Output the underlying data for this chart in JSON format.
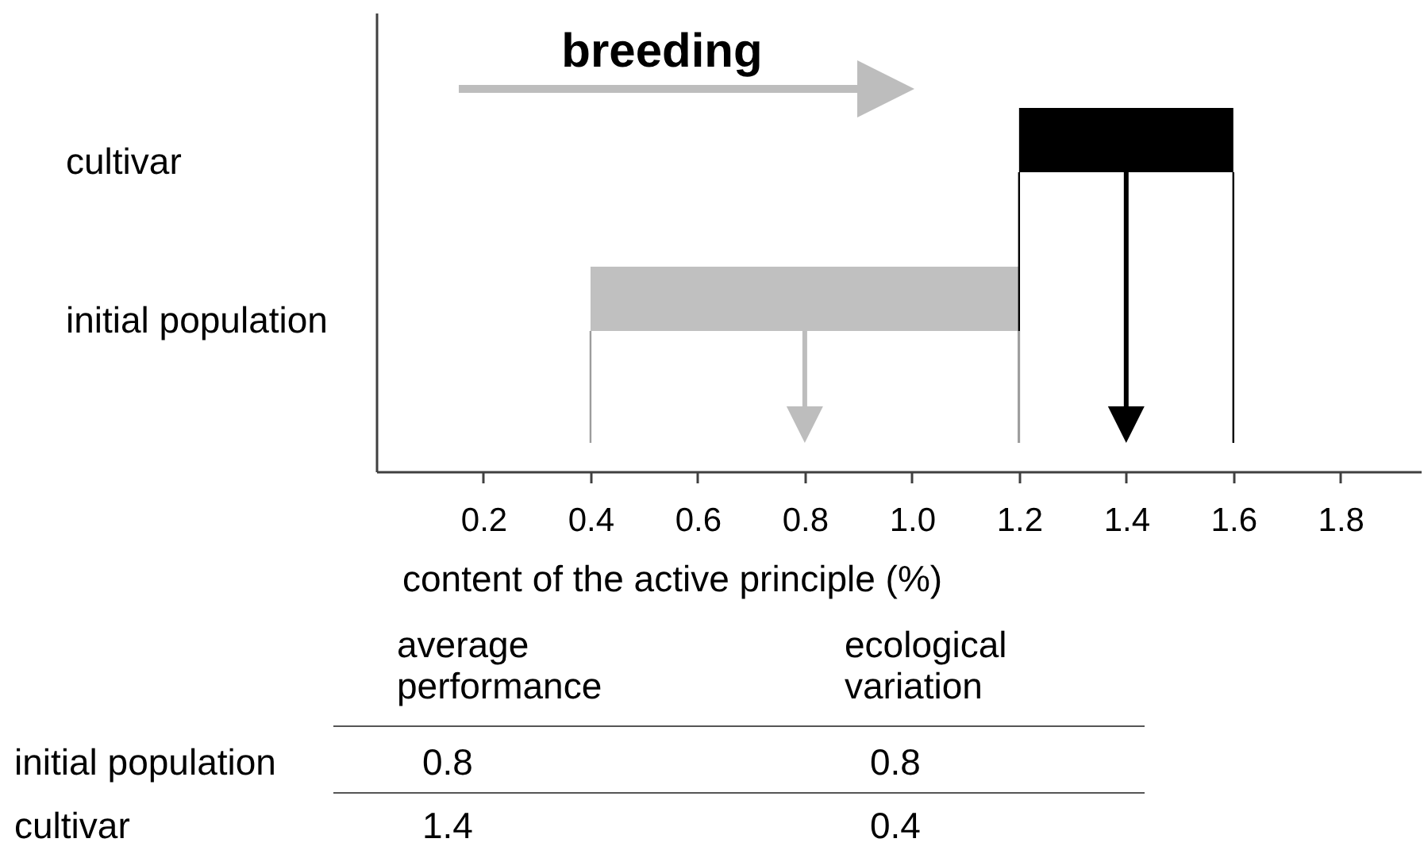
{
  "chart_data": {
    "type": "bar",
    "orientation": "horizontal",
    "categories": [
      "cultivar",
      "initial population"
    ],
    "base": [
      1.2,
      0.4
    ],
    "values": [
      0.4,
      0.8
    ],
    "colors": [
      "#000000",
      "#c0c0c0"
    ],
    "xlabel": "content of the active principle (%)",
    "xlim": [
      0,
      1.95
    ],
    "xticks": [
      0.2,
      0.4,
      0.6,
      0.8,
      {
        "value": 1,
        "label": "1.0"
      },
      1.2,
      1.4,
      1.6,
      1.8
    ],
    "ref_lines": [
      {
        "axis": "x",
        "value": 1.4,
        "color": "#000000"
      },
      {
        "axis": "x",
        "value": 0.8,
        "color": "#bdbdbd"
      }
    ],
    "annotations": [
      "breeding",
      "average performance",
      "ecological variation",
      "0.8",
      "0.8",
      "1.4",
      "0.4"
    ]
  }
}
